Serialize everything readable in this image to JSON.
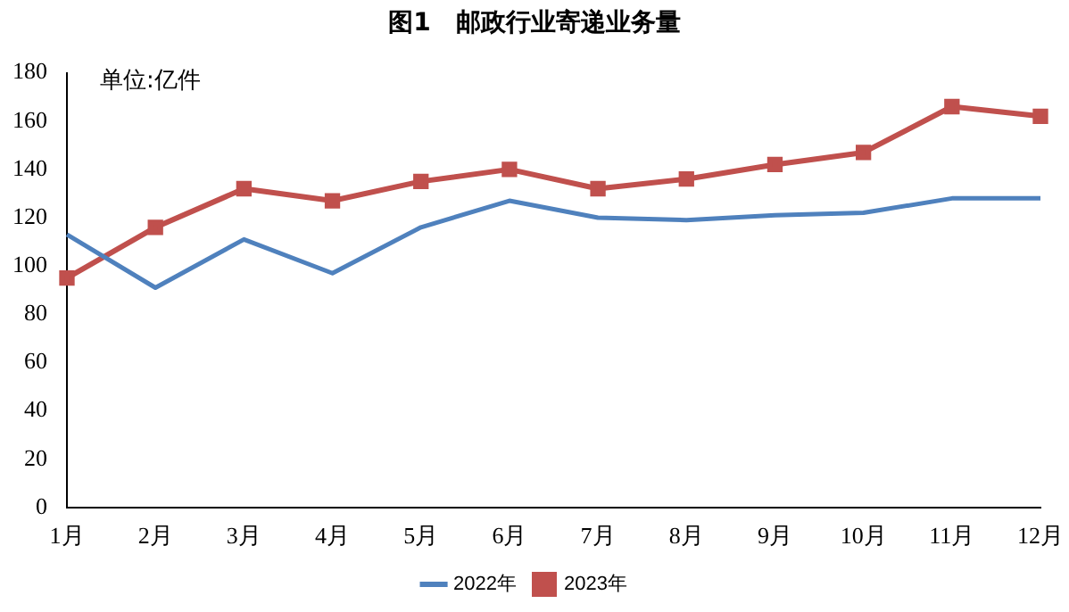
{
  "chart_data": {
    "type": "line",
    "title": "图1　邮政行业寄递业务量",
    "annotations": [
      "单位:亿件"
    ],
    "categories": [
      "1月",
      "2月",
      "3月",
      "4月",
      "5月",
      "6月",
      "7月",
      "8月",
      "9月",
      "10月",
      "11月",
      "12月"
    ],
    "series": [
      {
        "name": "2022年",
        "color": "#4f81bd",
        "marker": "none",
        "values": [
          113,
          91,
          111,
          97,
          116,
          127,
          120,
          119,
          121,
          122,
          128,
          128
        ]
      },
      {
        "name": "2023年",
        "color": "#c0504d",
        "marker": "square",
        "values": [
          95,
          116,
          132,
          127,
          135,
          140,
          132,
          136,
          142,
          147,
          166,
          162
        ]
      }
    ],
    "ylim": [
      0,
      180
    ],
    "yticks": [
      0,
      20,
      40,
      60,
      80,
      100,
      120,
      140,
      160,
      180
    ],
    "grid": false,
    "legend": "bottom"
  }
}
